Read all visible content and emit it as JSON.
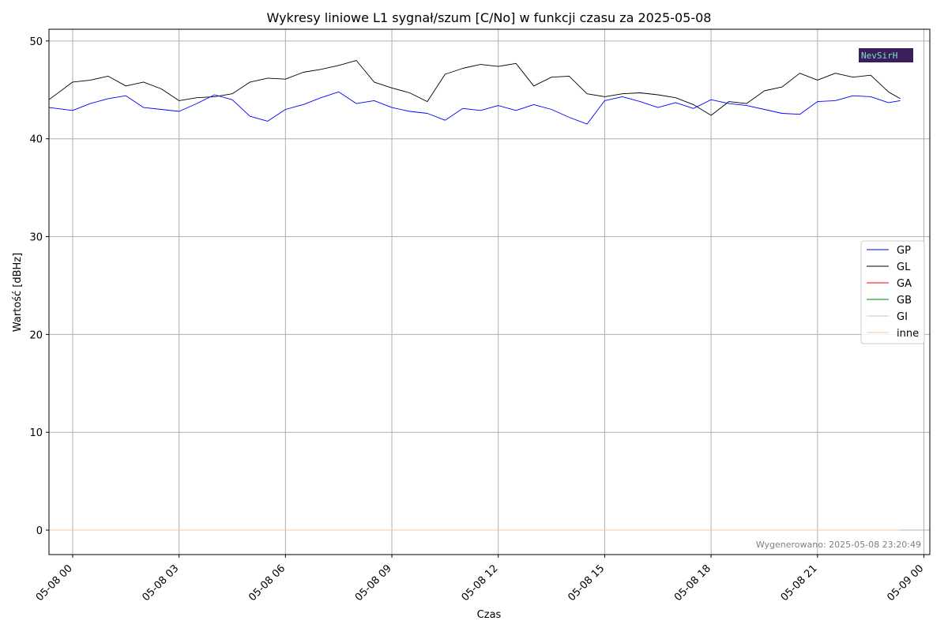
{
  "chart_data": {
    "type": "line",
    "title": "Wykresy liniowe L1 sygnał/szum [C/No] w funkcji czasu za 2025-05-08",
    "xlabel": "Czas",
    "ylabel": "Wartość [dBHz]",
    "x_range": [
      "2025-05-07 23:20",
      "2025-05-09 00:10"
    ],
    "ylim": [
      -2.5,
      51.2
    ],
    "grid": true,
    "legend_position": "center-right",
    "x_ticks": [
      "05-08 00",
      "05-08 03",
      "05-08 06",
      "05-08 09",
      "05-08 12",
      "05-08 15",
      "05-08 18",
      "05-08 21",
      "05-09 00"
    ],
    "y_ticks": [
      0,
      10,
      20,
      30,
      40,
      50
    ],
    "x": [
      "2025-05-07 23:20",
      "2025-05-08 00:00",
      "2025-05-08 00:30",
      "2025-05-08 01:00",
      "2025-05-08 01:30",
      "2025-05-08 02:00",
      "2025-05-08 02:30",
      "2025-05-08 03:00",
      "2025-05-08 03:30",
      "2025-05-08 04:00",
      "2025-05-08 04:30",
      "2025-05-08 05:00",
      "2025-05-08 05:30",
      "2025-05-08 06:00",
      "2025-05-08 06:30",
      "2025-05-08 07:00",
      "2025-05-08 07:30",
      "2025-05-08 08:00",
      "2025-05-08 08:30",
      "2025-05-08 09:00",
      "2025-05-08 09:30",
      "2025-05-08 10:00",
      "2025-05-08 10:30",
      "2025-05-08 11:00",
      "2025-05-08 11:30",
      "2025-05-08 12:00",
      "2025-05-08 12:30",
      "2025-05-08 13:00",
      "2025-05-08 13:30",
      "2025-05-08 14:00",
      "2025-05-08 14:30",
      "2025-05-08 15:00",
      "2025-05-08 15:30",
      "2025-05-08 16:00",
      "2025-05-08 16:30",
      "2025-05-08 17:00",
      "2025-05-08 17:30",
      "2025-05-08 18:00",
      "2025-05-08 18:30",
      "2025-05-08 19:00",
      "2025-05-08 19:30",
      "2025-05-08 20:00",
      "2025-05-08 20:30",
      "2025-05-08 21:00",
      "2025-05-08 21:30",
      "2025-05-08 22:00",
      "2025-05-08 22:30",
      "2025-05-08 23:00",
      "2025-05-08 23:20"
    ],
    "series": [
      {
        "name": "GP",
        "color": "#0000ff",
        "values": [
          43.2,
          42.9,
          43.6,
          44.1,
          44.4,
          43.2,
          43.0,
          42.8,
          43.6,
          44.5,
          44.0,
          42.3,
          41.8,
          43.0,
          43.5,
          44.2,
          44.8,
          43.6,
          43.9,
          43.2,
          42.8,
          42.6,
          41.9,
          43.1,
          42.9,
          43.4,
          42.9,
          43.5,
          43.0,
          42.2,
          41.5,
          43.9,
          44.3,
          43.8,
          43.2,
          43.7,
          43.1,
          44.0,
          43.6,
          43.4,
          43.0,
          42.6,
          42.5,
          43.8,
          43.9,
          44.4,
          44.3,
          43.7,
          43.9
        ]
      },
      {
        "name": "GL",
        "color": "#000000",
        "values": [
          44.0,
          45.8,
          46.0,
          46.4,
          45.4,
          45.8,
          45.1,
          43.9,
          44.2,
          44.3,
          44.6,
          45.8,
          46.2,
          46.1,
          46.8,
          47.1,
          47.5,
          48.0,
          45.8,
          45.2,
          44.7,
          43.8,
          46.6,
          47.2,
          47.6,
          47.4,
          47.7,
          45.4,
          46.3,
          46.4,
          44.6,
          44.3,
          44.6,
          44.7,
          44.5,
          44.2,
          43.5,
          42.4,
          43.8,
          43.6,
          44.9,
          45.3,
          46.7,
          46.0,
          46.7,
          46.3,
          46.5,
          44.8,
          44.1
        ]
      },
      {
        "name": "GA",
        "color": "#ff0000",
        "values": [
          0,
          0,
          0,
          0,
          0,
          0,
          0,
          0,
          0,
          0,
          0,
          0,
          0,
          0,
          0,
          0,
          0,
          0,
          0,
          0,
          0,
          0,
          0,
          0,
          0,
          0,
          0,
          0,
          0,
          0,
          0,
          0,
          0,
          0,
          0,
          0,
          0,
          0,
          0,
          0,
          0,
          0,
          0,
          0,
          0,
          0,
          0,
          0,
          0
        ]
      },
      {
        "name": "GB",
        "color": "#008000",
        "values": [
          0,
          0,
          0,
          0,
          0,
          0,
          0,
          0,
          0,
          0,
          0,
          0,
          0,
          0,
          0,
          0,
          0,
          0,
          0,
          0,
          0,
          0,
          0,
          0,
          0,
          0,
          0,
          0,
          0,
          0,
          0,
          0,
          0,
          0,
          0,
          0,
          0,
          0,
          0,
          0,
          0,
          0,
          0,
          0,
          0,
          0,
          0,
          0,
          0
        ]
      },
      {
        "name": "GI",
        "color": "#a6c8ec",
        "values": [
          0,
          0,
          0,
          0,
          0,
          0,
          0,
          0,
          0,
          0,
          0,
          0,
          0,
          0,
          0,
          0,
          0,
          0,
          0,
          0,
          0,
          0,
          0,
          0,
          0,
          0,
          0,
          0,
          0,
          0,
          0,
          0,
          0,
          0,
          0,
          0,
          0,
          0,
          0,
          0,
          0,
          0,
          0,
          0,
          0,
          0,
          0,
          0,
          0
        ]
      },
      {
        "name": "inne",
        "color": "#f5c89a",
        "values": [
          0,
          0,
          0,
          0,
          0,
          0,
          0,
          0,
          0,
          0,
          0,
          0,
          0,
          0,
          0,
          0,
          0,
          0,
          0,
          0,
          0,
          0,
          0,
          0,
          0,
          0,
          0,
          0,
          0,
          0,
          0,
          0,
          0,
          0,
          0,
          0,
          0,
          0,
          0,
          0,
          0,
          0,
          0,
          0,
          0,
          0,
          0,
          0,
          0
        ]
      }
    ]
  },
  "footer_note": "Wygenerowano: 2025-05-08 23:20:49",
  "logo": {
    "text": "NevSirH",
    "background": "#3a1f5c"
  }
}
